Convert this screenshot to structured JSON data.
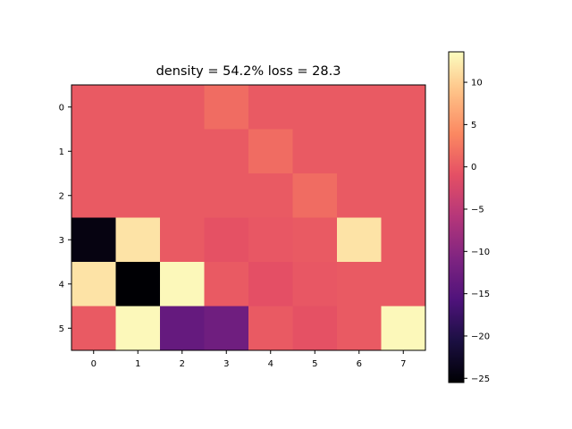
{
  "chart_data": {
    "type": "heatmap",
    "title": "density = 54.2%    loss = 28.3",
    "x_ticks": [
      "0",
      "1",
      "2",
      "3",
      "4",
      "5",
      "6",
      "7"
    ],
    "y_ticks": [
      "0",
      "1",
      "2",
      "3",
      "4",
      "5"
    ],
    "colormap": "magma",
    "vmin": -25.5,
    "vmax": 13.6,
    "colorbar_ticks": [
      10,
      5,
      0,
      -5,
      -10,
      -15,
      -20,
      -25
    ],
    "colorbar_tick_labels": [
      "10",
      "5",
      "0",
      "−5",
      "−10",
      "−15",
      "−20",
      "−25"
    ],
    "values": [
      [
        0,
        0,
        0,
        1.5,
        0,
        0,
        0,
        0
      ],
      [
        0,
        0,
        0,
        0,
        1.5,
        0,
        0,
        0
      ],
      [
        0,
        0,
        0,
        0,
        0,
        1.5,
        0,
        0
      ],
      [
        -24.5,
        11.5,
        0,
        -0.8,
        -0.3,
        0,
        11.5,
        0
      ],
      [
        11.5,
        -25.5,
        13.2,
        0,
        -1.0,
        -0.3,
        0,
        0
      ],
      [
        0,
        13.2,
        -13.5,
        -12.5,
        0,
        -0.8,
        0,
        13.2
      ]
    ]
  }
}
